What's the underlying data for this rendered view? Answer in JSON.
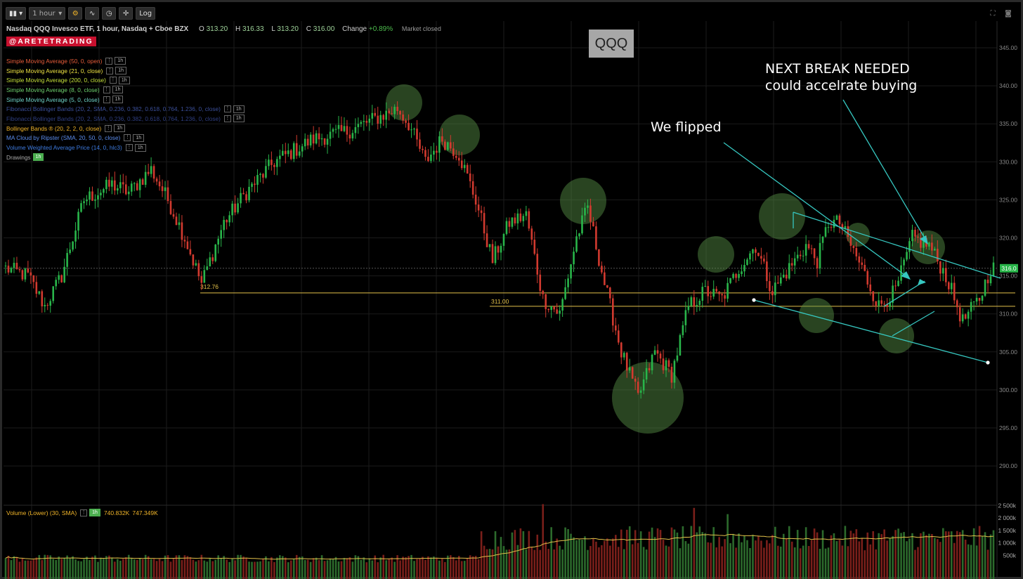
{
  "toolbar": {
    "interval": "1 hour",
    "log_label": "Log"
  },
  "header": {
    "title": "Nasdaq QQQ Invesco ETF, 1 hour, Nasdaq + Cboe BZX",
    "open_label": "O",
    "open": "313.20",
    "high_label": "H",
    "high": "316.33",
    "low_label": "L",
    "low": "313.20",
    "close_label": "C",
    "close": "316.00",
    "change_label": "Change",
    "change": "+0.89%",
    "market_status": "Market closed"
  },
  "brand": "@ARETETRADING",
  "symbol": "QQQ",
  "legend": [
    {
      "label": "Simple Moving Average (50, 0, open)",
      "color": "#e85d3a",
      "badge": "1h"
    },
    {
      "label": "Simple Moving Average (21, 0, close)",
      "color": "#f0e442",
      "badge": "1h"
    },
    {
      "label": "Simple Moving Average (200, 0, close)",
      "color": "#c5e03a",
      "badge": "1h"
    },
    {
      "label": "Simple Moving Average (8, 0, close)",
      "color": "#6fd36f",
      "badge": "1h"
    },
    {
      "label": "Simple Moving Average (5, 0, close)",
      "color": "#6fd3c8",
      "badge": "1h"
    },
    {
      "label": "Fibonacci Bollinger Bands (20, 2, SMA, 0.236, 0.382, 0.618, 0.764, 1.236, 0, close)",
      "color": "#3b4f9a",
      "badge": "1h"
    },
    {
      "label": "Fibonacci Bollinger Bands (20, 2, SMA, 0.236, 0.382, 0.618, 0.764, 1.236, 0, close)",
      "color": "#2f3f82",
      "badge": "1h"
    },
    {
      "label": "Bollinger Bands ® (20, 2, 2, 0, close)",
      "color": "#f0b429",
      "badge": "1h"
    },
    {
      "label": "MA Cloud by Ripster (SMA, 20, 50, 0, close)",
      "color": "#5b8def",
      "badge": "1h"
    },
    {
      "label": "Volume Weighted Average Price (14, 0, hlc3)",
      "color": "#3d7be0",
      "badge": "1h"
    },
    {
      "label": "Drawings",
      "color": "#aaaaaa",
      "badge": "1h",
      "badge_green": true
    }
  ],
  "annotations": {
    "we_flipped": "We flipped",
    "next_break_1": "NEXT BREAK NEEDED",
    "next_break_2": "could accelrate buying"
  },
  "level_labels": {
    "left": "312.76",
    "mid": "311.00"
  },
  "volume_legend": {
    "label": "Volume (Lower) (30, SMA)",
    "badge": "1h",
    "value1": "740.832K",
    "value2": "747.349K"
  },
  "chart_data": {
    "type": "candlestick",
    "title": "QQQ",
    "ylim": [
      288,
      347
    ],
    "price_ticks": [
      "345.00",
      "340.00",
      "335.00",
      "330.00",
      "325.00",
      "320.00",
      "315.00",
      "310.00",
      "305.00",
      "300.00",
      "295.00",
      "290.00"
    ],
    "last_price": "316.0",
    "volume_ticks": [
      "2 500k",
      "2 000k",
      "1 500k",
      "1 000k",
      "500k"
    ],
    "horizontal_levels": [
      312.76,
      311.0
    ],
    "price_path": [
      {
        "i": 0,
        "p": 316
      },
      {
        "i": 8,
        "p": 315
      },
      {
        "i": 14,
        "p": 311
      },
      {
        "i": 20,
        "p": 315
      },
      {
        "i": 28,
        "p": 325
      },
      {
        "i": 38,
        "p": 327
      },
      {
        "i": 44,
        "p": 326
      },
      {
        "i": 52,
        "p": 329
      },
      {
        "i": 58,
        "p": 325
      },
      {
        "i": 64,
        "p": 320
      },
      {
        "i": 70,
        "p": 314
      },
      {
        "i": 78,
        "p": 322
      },
      {
        "i": 86,
        "p": 326
      },
      {
        "i": 96,
        "p": 330
      },
      {
        "i": 110,
        "p": 333
      },
      {
        "i": 122,
        "p": 334
      },
      {
        "i": 134,
        "p": 336
      },
      {
        "i": 140,
        "p": 337
      },
      {
        "i": 144,
        "p": 335
      },
      {
        "i": 150,
        "p": 330
      },
      {
        "i": 156,
        "p": 333
      },
      {
        "i": 162,
        "p": 331
      },
      {
        "i": 168,
        "p": 325
      },
      {
        "i": 174,
        "p": 317
      },
      {
        "i": 180,
        "p": 322
      },
      {
        "i": 186,
        "p": 323
      },
      {
        "i": 192,
        "p": 312
      },
      {
        "i": 198,
        "p": 310
      },
      {
        "i": 204,
        "p": 320
      },
      {
        "i": 208,
        "p": 324
      },
      {
        "i": 214,
        "p": 314
      },
      {
        "i": 220,
        "p": 305
      },
      {
        "i": 226,
        "p": 299
      },
      {
        "i": 232,
        "p": 305
      },
      {
        "i": 238,
        "p": 302
      },
      {
        "i": 244,
        "p": 311
      },
      {
        "i": 250,
        "p": 313
      },
      {
        "i": 256,
        "p": 312
      },
      {
        "i": 262,
        "p": 316
      },
      {
        "i": 268,
        "p": 319
      },
      {
        "i": 274,
        "p": 313
      },
      {
        "i": 280,
        "p": 316
      },
      {
        "i": 286,
        "p": 319
      },
      {
        "i": 290,
        "p": 317
      },
      {
        "i": 294,
        "p": 322
      },
      {
        "i": 298,
        "p": 322
      },
      {
        "i": 302,
        "p": 319
      },
      {
        "i": 306,
        "p": 316
      },
      {
        "i": 312,
        "p": 311
      },
      {
        "i": 318,
        "p": 313
      },
      {
        "i": 324,
        "p": 320
      },
      {
        "i": 330,
        "p": 319
      },
      {
        "i": 336,
        "p": 315
      },
      {
        "i": 342,
        "p": 309
      },
      {
        "i": 348,
        "p": 312
      },
      {
        "i": 352,
        "p": 316
      }
    ]
  }
}
